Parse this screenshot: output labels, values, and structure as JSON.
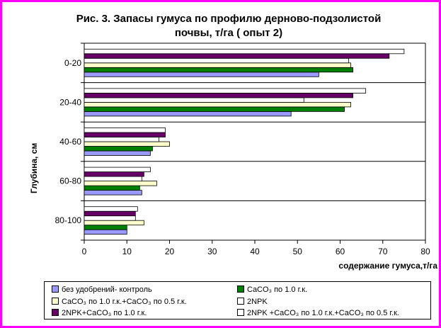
{
  "chart_data": {
    "type": "bar",
    "orientation": "horizontal",
    "title_lines": [
      "Рис. 3.  Запасы гумуса по профилю дерново-подзолистой",
      "почвы, т/га ( опыт 2)"
    ],
    "xlabel": "содержание гумуса,т/га",
    "ylabel": "Глубина, см",
    "xlim": [
      0,
      80
    ],
    "xticks": [
      "0",
      "10",
      "20",
      "30",
      "40",
      "50",
      "60",
      "70",
      "80"
    ],
    "categories": [
      "0-20",
      "20-40",
      "40-60",
      "60-80",
      "80-100"
    ],
    "grid": "horizontal category separators",
    "legend_position": "bottom",
    "series": [
      {
        "name": "без удобрений- контроль",
        "color": "#9999ff",
        "values": [
          55,
          48.5,
          15.5,
          13.5,
          10
        ]
      },
      {
        "name": "CaCO₃ по 1.0 г.к.",
        "color": "#008000",
        "values": [
          63,
          61,
          16,
          13,
          10
        ]
      },
      {
        "name": "CaCO₃ по 1.0 г.к.+CaCO₃ по 0.5 г.к.",
        "color": "#ffffcc",
        "values": [
          62.5,
          62.5,
          20,
          17,
          14
        ]
      },
      {
        "name": "2NPK",
        "color": "#ffffff",
        "values": [
          62,
          51.5,
          17.5,
          13.5,
          12
        ]
      },
      {
        "name": "2NPK+CaCO₃  по 1.0 г.к.",
        "color": "#660066",
        "values": [
          71.5,
          63,
          19,
          14,
          12
        ]
      },
      {
        "name": "2NPK +CaCO₃ по 1.0 г.к.+CaCO₃ по 0.5 г.к.",
        "color": "#ffffff",
        "values": [
          75,
          66,
          19,
          15.5,
          12.5
        ]
      }
    ]
  }
}
